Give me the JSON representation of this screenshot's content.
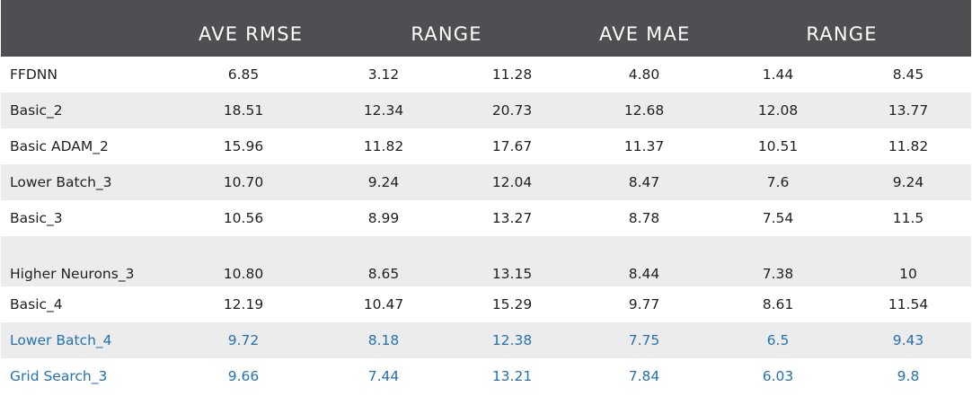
{
  "colors": {
    "header_bg": "#4d4f52",
    "header_text": "#ffffff",
    "row_shaded": "#ececec",
    "row_white": "#ffffff",
    "text": "#1f1f1f",
    "accent_text": "#2471b3"
  },
  "headers": {
    "ave_rmse": "AVE RMSE",
    "range_rmse": "RANGE",
    "ave_mae": "AVE MAE",
    "range_mae": "RANGE"
  },
  "rows": [
    {
      "name": "FFDNN",
      "ave_rmse": "6.85",
      "rmse_min": "3.12",
      "rmse_max": "11.28",
      "ave_mae": "4.80",
      "mae_min": "1.44",
      "mae_max": "8.45",
      "highlight": false
    },
    {
      "name": "Basic_2",
      "ave_rmse": "18.51",
      "rmse_min": "12.34",
      "rmse_max": "20.73",
      "ave_mae": "12.68",
      "mae_min": "12.08",
      "mae_max": "13.77",
      "highlight": false
    },
    {
      "name": "Basic ADAM_2",
      "ave_rmse": "15.96",
      "rmse_min": "11.82",
      "rmse_max": "17.67",
      "ave_mae": "11.37",
      "mae_min": "10.51",
      "mae_max": "11.82",
      "highlight": false
    },
    {
      "name": "Lower Batch_3",
      "ave_rmse": "10.70",
      "rmse_min": "9.24",
      "rmse_max": "12.04",
      "ave_mae": "8.47",
      "mae_min": "7.6",
      "mae_max": "9.24",
      "highlight": false
    },
    {
      "name": "Basic_3",
      "ave_rmse": "10.56",
      "rmse_min": "8.99",
      "rmse_max": "13.27",
      "ave_mae": "8.78",
      "mae_min": "7.54",
      "mae_max": "11.5",
      "highlight": false
    },
    {
      "name": "Higher Neurons_3",
      "ave_rmse": "10.80",
      "rmse_min": "8.65",
      "rmse_max": "13.15",
      "ave_mae": "8.44",
      "mae_min": "7.38",
      "mae_max": "10",
      "highlight": false
    },
    {
      "name": "Basic_4",
      "ave_rmse": "12.19",
      "rmse_min": "10.47",
      "rmse_max": "15.29",
      "ave_mae": "9.77",
      "mae_min": "8.61",
      "mae_max": "11.54",
      "highlight": false
    },
    {
      "name": "Lower Batch_4",
      "ave_rmse": "9.72",
      "rmse_min": "8.18",
      "rmse_max": "12.38",
      "ave_mae": "7.75",
      "mae_min": "6.5",
      "mae_max": "9.43",
      "highlight": true
    },
    {
      "name": "Grid Search_3",
      "ave_rmse": "9.66",
      "rmse_min": "7.44",
      "rmse_max": "13.21",
      "ave_mae": "7.84",
      "mae_min": "6.03",
      "mae_max": "9.8",
      "highlight": true
    }
  ]
}
